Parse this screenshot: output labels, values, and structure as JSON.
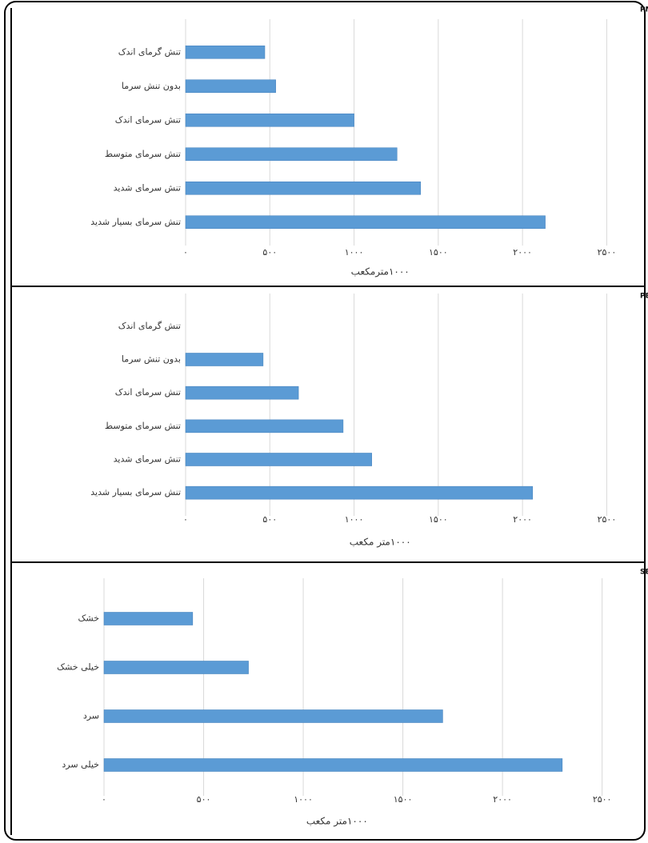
{
  "chart_data": [
    {
      "type": "bar",
      "orientation": "horizontal",
      "title": "الف) نمایهٔ PMV",
      "categories": [
        "تنش گرمای اندک",
        "بدون تنش سرما",
        "تنش سرمای اندک",
        "تنش سرمای متوسط",
        "تنش سرمای شدید",
        "تنش سرمای بسیار شدید"
      ],
      "values": [
        470,
        535,
        1000,
        1255,
        1395,
        2135
      ],
      "color": "#5b9bd5",
      "xlabel": "۱۰۰۰مترمکعب",
      "xlim": [
        0,
        2650
      ],
      "xticks": [
        {
          "value": 0,
          "label": "۰"
        },
        {
          "value": 500,
          "label": "۵۰۰"
        },
        {
          "value": 1000,
          "label": "۱۰۰۰"
        },
        {
          "value": 1500,
          "label": "۱۵۰۰"
        },
        {
          "value": 2000,
          "label": "۲۰۰۰"
        },
        {
          "value": 2500,
          "label": "۲۵۰۰"
        }
      ],
      "grid": true
    },
    {
      "type": "bar",
      "orientation": "horizontal",
      "title": "ب) نمایهٔ PET",
      "categories": [
        "تنش گرمای اندک",
        "بدون تنش سرما",
        "تنش سرمای اندک",
        "تنش سرمای متوسط",
        "تنش سرمای شدید",
        "تنش سرمای بسیار شدید"
      ],
      "values": [
        0,
        460,
        670,
        935,
        1105,
        2060
      ],
      "color": "#5b9bd5",
      "xlabel": "۱۰۰۰متر مکعب",
      "xlim": [
        0,
        2650
      ],
      "xticks": [
        {
          "value": 0,
          "label": "۰"
        },
        {
          "value": 500,
          "label": "۵۰۰"
        },
        {
          "value": 1000,
          "label": "۱۰۰۰"
        },
        {
          "value": 1500,
          "label": "۱۵۰۰"
        },
        {
          "value": 2000,
          "label": "۲۰۰۰"
        },
        {
          "value": 2500,
          "label": "۲۵۰۰"
        }
      ],
      "grid": true
    },
    {
      "type": "bar",
      "orientation": "horizontal",
      "title": "ج) نمایهٔ SET",
      "categories": [
        "خشک",
        "خیلی خشک",
        "سرد",
        "خیلی سرد"
      ],
      "values": [
        445,
        725,
        1700,
        2300
      ],
      "color": "#5b9bd5",
      "xlabel": "۱۰۰۰متر مکعب",
      "xlim": [
        0,
        2650
      ],
      "xticks": [
        {
          "value": 0,
          "label": "۰"
        },
        {
          "value": 500,
          "label": "۵۰۰"
        },
        {
          "value": 1000,
          "label": "۱۰۰۰"
        },
        {
          "value": 1500,
          "label": "۱۵۰۰"
        },
        {
          "value": 2000,
          "label": "۲۰۰۰"
        },
        {
          "value": 2500,
          "label": "۲۵۰۰"
        }
      ],
      "grid": true
    }
  ]
}
